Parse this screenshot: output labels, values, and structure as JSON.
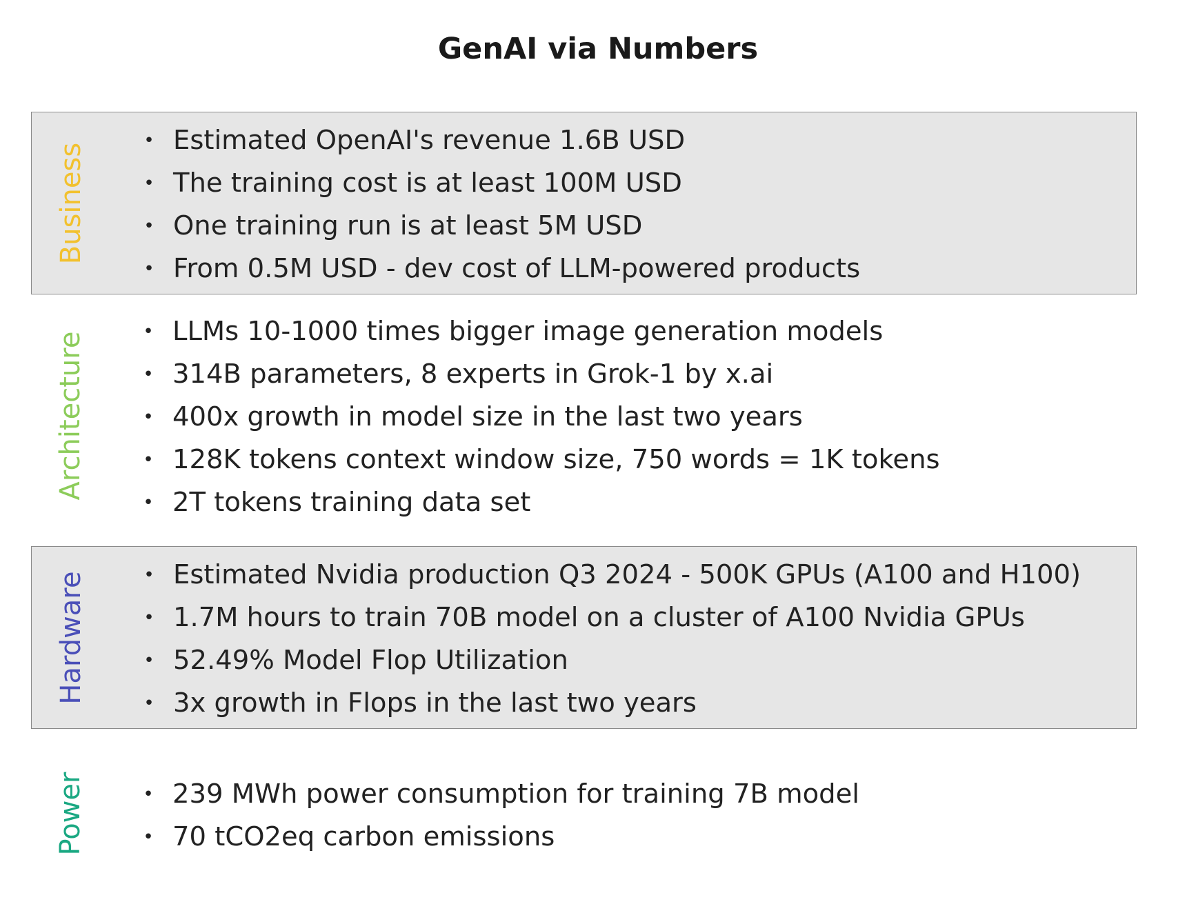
{
  "title": "GenAI via Numbers",
  "bullet_glyph": "•",
  "sections": [
    {
      "label": "Business",
      "label_color": "#f2c12e",
      "boxed": true,
      "items": [
        "Estimated OpenAI's revenue 1.6B USD",
        "The training cost is at least 100M USD",
        "One training run is at least 5M USD",
        "From 0.5M USD - dev cost of LLM-powered products"
      ]
    },
    {
      "label": "Architecture",
      "label_color": "#8ccc5a",
      "boxed": false,
      "items": [
        "LLMs 10-1000 times bigger image generation models",
        "314B parameters, 8 experts in Grok-1 by x.ai",
        "400x growth in model size in the last two years",
        "128K tokens context window size, 750 words = 1K tokens",
        "2T tokens training data set"
      ]
    },
    {
      "label": "Hardware",
      "label_color": "#4a4fb8",
      "boxed": true,
      "items": [
        "Estimated Nvidia production Q3 2024 - 500K GPUs (A100 and H100)",
        "1.7M hours to train 70B model on a cluster of A100 Nvidia GPUs",
        "52.49% Model Flop Utilization",
        "3x growth in Flops in the last two years"
      ]
    },
    {
      "label": "Power",
      "label_color": "#1aa882",
      "boxed": false,
      "items": [
        "239 MWh power consumption for training 7B model",
        "70 tCO2eq carbon emissions"
      ]
    }
  ]
}
